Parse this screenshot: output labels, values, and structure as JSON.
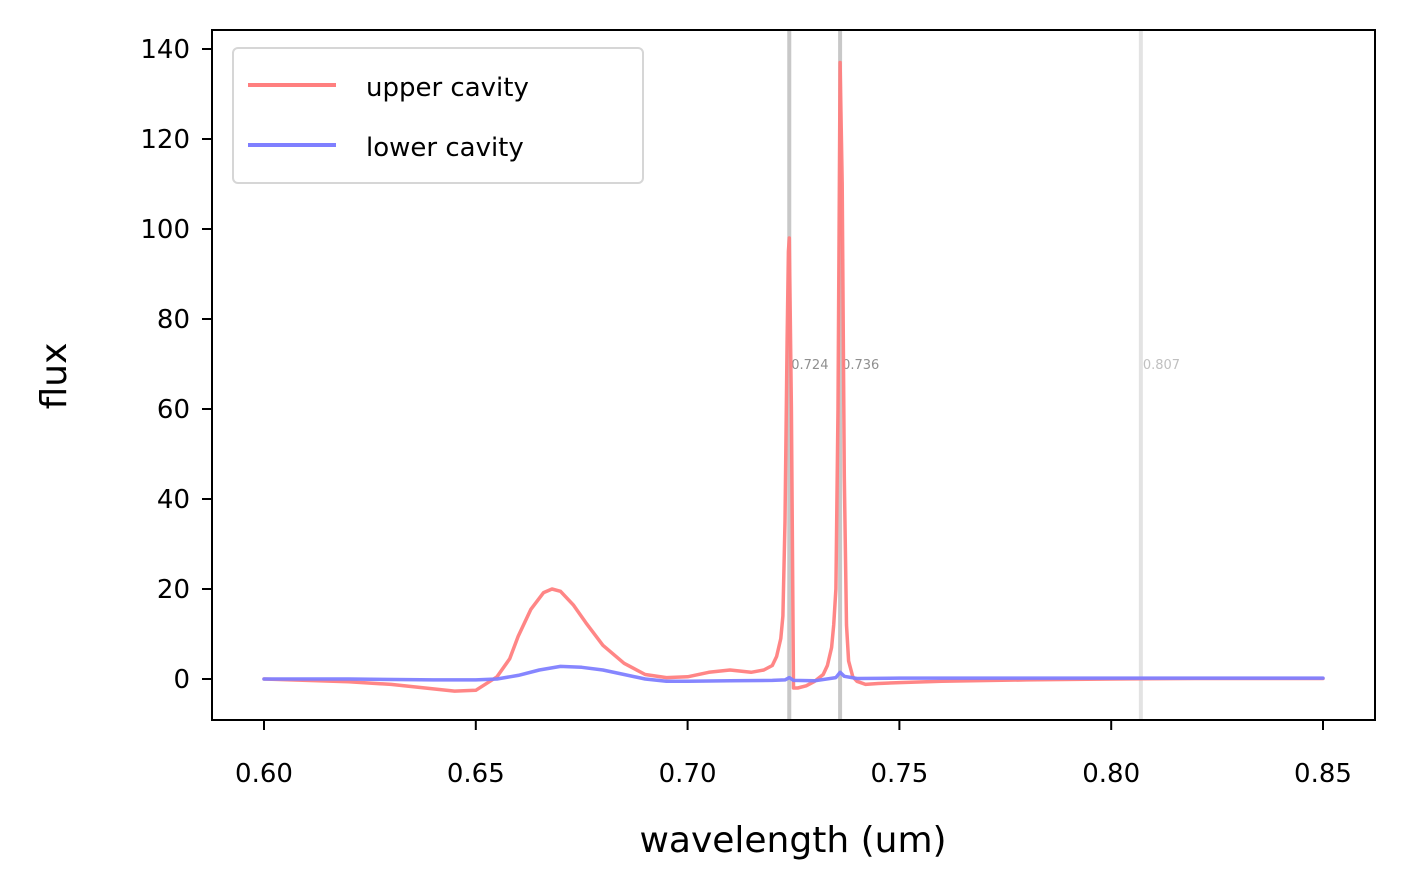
{
  "chart_data": {
    "type": "line",
    "title": "",
    "xlabel": "wavelength (um)",
    "ylabel": "flux",
    "xlim": [
      0.5875,
      1.3625
    ],
    "ylim": [
      -9.3,
      144.3
    ],
    "xticks": [
      "0.60",
      "0.65",
      "0.70",
      "0.75",
      "0.80",
      "0.85"
    ],
    "xtick_values": [
      0.6,
      0.65,
      0.7,
      0.75,
      0.8,
      0.85
    ],
    "yticks": [
      "0",
      "20",
      "40",
      "60",
      "80",
      "100",
      "120",
      "140"
    ],
    "ytick_values": [
      0,
      20,
      40,
      60,
      80,
      100,
      120,
      140
    ],
    "grid": false,
    "legend_position": "top-left",
    "vertical_lines": [
      {
        "x": 0.724,
        "label": "0.724",
        "color": "#c8c8c8",
        "label_color": "#8f8f8f"
      },
      {
        "x": 0.736,
        "label": "0.736",
        "color": "#c8c8c8",
        "label_color": "#8f8f8f"
      },
      {
        "x": 0.807,
        "label": "0.807",
        "color": "#e3e3e3",
        "label_color": "#c0c0c0"
      }
    ],
    "vline_label_y": 70,
    "series": [
      {
        "name": "upper cavity",
        "color": "#ff7f7f",
        "x": [
          0.6,
          0.61,
          0.62,
          0.63,
          0.64,
          0.645,
          0.65,
          0.655,
          0.658,
          0.66,
          0.663,
          0.666,
          0.668,
          0.67,
          0.673,
          0.676,
          0.68,
          0.685,
          0.69,
          0.695,
          0.7,
          0.705,
          0.71,
          0.715,
          0.718,
          0.72,
          0.721,
          0.722,
          0.7225,
          0.723,
          0.7235,
          0.7238,
          0.724,
          0.7245,
          0.725,
          0.726,
          0.728,
          0.73,
          0.732,
          0.733,
          0.734,
          0.7345,
          0.735,
          0.7355,
          0.736,
          0.7365,
          0.737,
          0.7375,
          0.738,
          0.739,
          0.74,
          0.742,
          0.745,
          0.75,
          0.76,
          0.78,
          0.8,
          0.82,
          0.85
        ],
        "y": [
          0,
          -0.3,
          -0.6,
          -1.2,
          -2.2,
          -2.7,
          -2.5,
          0.5,
          4.5,
          9.5,
          15.5,
          19.2,
          20.0,
          19.5,
          16.5,
          12.5,
          7.5,
          3.5,
          1.0,
          0.3,
          0.5,
          1.5,
          2.0,
          1.5,
          2.0,
          3.0,
          5.0,
          9.0,
          14.0,
          35.0,
          75.0,
          95.0,
          98.0,
          60.0,
          -2.0,
          -2.0,
          -1.5,
          -0.5,
          1.0,
          3.0,
          7.0,
          12.0,
          20.0,
          60.0,
          137.0,
          110.0,
          45.0,
          12.0,
          4.0,
          0.5,
          -0.5,
          -1.2,
          -1.0,
          -0.8,
          -0.5,
          -0.2,
          0,
          0.1,
          0.1
        ]
      },
      {
        "name": "lower cavity",
        "color": "#7f7fff",
        "x": [
          0.6,
          0.62,
          0.64,
          0.65,
          0.655,
          0.66,
          0.665,
          0.67,
          0.675,
          0.68,
          0.685,
          0.69,
          0.695,
          0.7,
          0.71,
          0.72,
          0.723,
          0.724,
          0.725,
          0.73,
          0.735,
          0.736,
          0.737,
          0.74,
          0.75,
          0.78,
          0.8,
          0.85
        ],
        "y": [
          0,
          0,
          -0.2,
          -0.2,
          0,
          0.8,
          2.0,
          2.8,
          2.6,
          2.0,
          1.0,
          0,
          -0.5,
          -0.5,
          -0.4,
          -0.3,
          -0.2,
          0.3,
          -0.3,
          -0.4,
          0.3,
          1.5,
          0.6,
          0.1,
          0.2,
          0.2,
          0.2,
          0.2
        ]
      }
    ]
  }
}
